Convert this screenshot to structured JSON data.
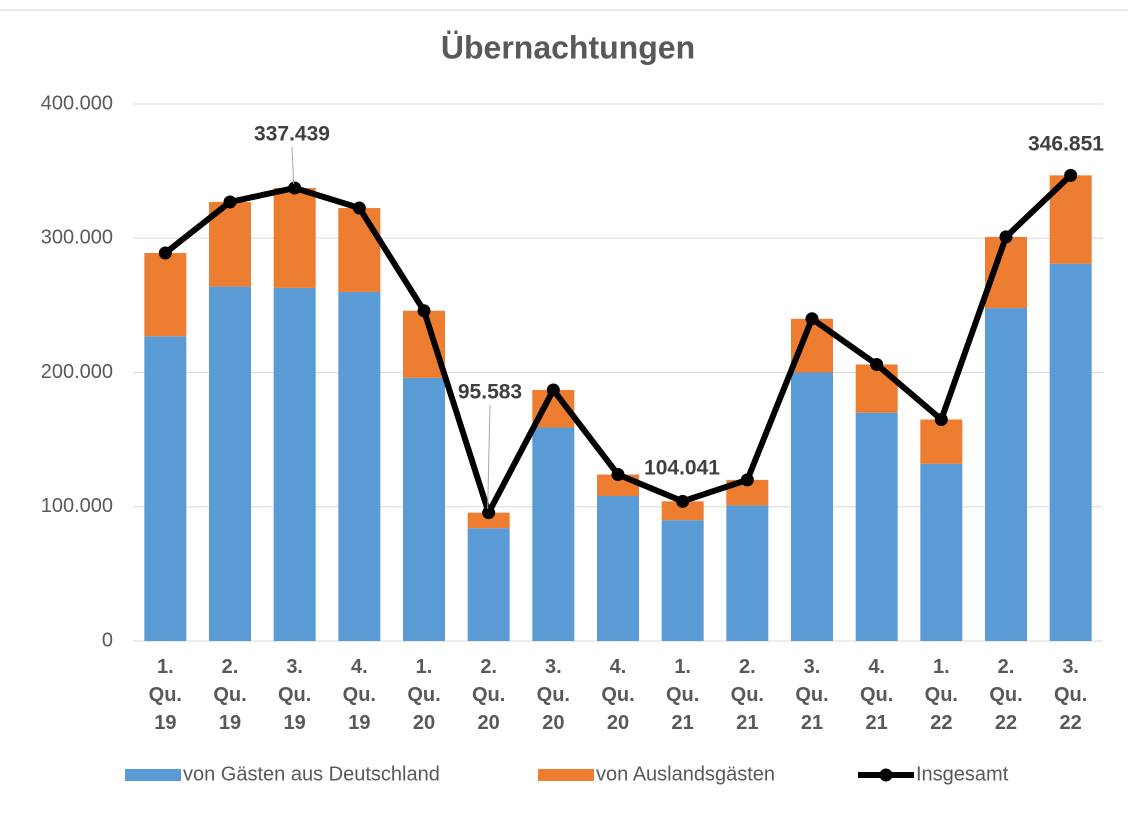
{
  "chart_data": {
    "type": "bar",
    "stacked": true,
    "title": "Übernachtungen",
    "categories": [
      "1. Qu. 19",
      "2. Qu. 19",
      "3. Qu. 19",
      "4. Qu. 19",
      "1. Qu. 20",
      "2. Qu. 20",
      "3. Qu. 20",
      "4. Qu. 20",
      "1. Qu. 21",
      "2. Qu. 21",
      "3. Qu. 21",
      "4. Qu. 21",
      "1. Qu. 22",
      "2. Qu. 22",
      "3. Qu. 22"
    ],
    "series": [
      {
        "name": "von Gästen aus Deutschland",
        "type": "bar",
        "color": "#5b9bd5",
        "values": [
          227000,
          264000,
          263000,
          260000,
          196000,
          84000,
          159000,
          108000,
          90000,
          101000,
          200000,
          170000,
          132000,
          248000,
          281000
        ]
      },
      {
        "name": "von Auslandsgästen",
        "type": "bar",
        "color": "#ed7d31",
        "values": [
          62000,
          63000,
          74439,
          62500,
          50000,
          11583,
          28000,
          16000,
          14041,
          19000,
          40000,
          36000,
          33000,
          53000,
          65851
        ]
      },
      {
        "name": "Insgesamt",
        "type": "line",
        "color": "#000000",
        "values": [
          289000,
          327000,
          337439,
          322500,
          246000,
          95583,
          187000,
          124000,
          104041,
          120000,
          240000,
          206000,
          165000,
          301000,
          346851
        ],
        "value_labels": [
          null,
          null,
          "337.439",
          null,
          null,
          "95.583",
          null,
          null,
          "104.041",
          null,
          null,
          null,
          null,
          null,
          "346.851"
        ]
      }
    ],
    "ylim": [
      0,
      400000
    ],
    "yticks": [
      {
        "value": 0,
        "label": "0"
      },
      {
        "value": 100000,
        "label": "100.000"
      },
      {
        "value": 200000,
        "label": "200.000"
      },
      {
        "value": 300000,
        "label": "300.000"
      },
      {
        "value": 400000,
        "label": "400.000"
      }
    ],
    "grid": true,
    "legend": "bottom"
  }
}
